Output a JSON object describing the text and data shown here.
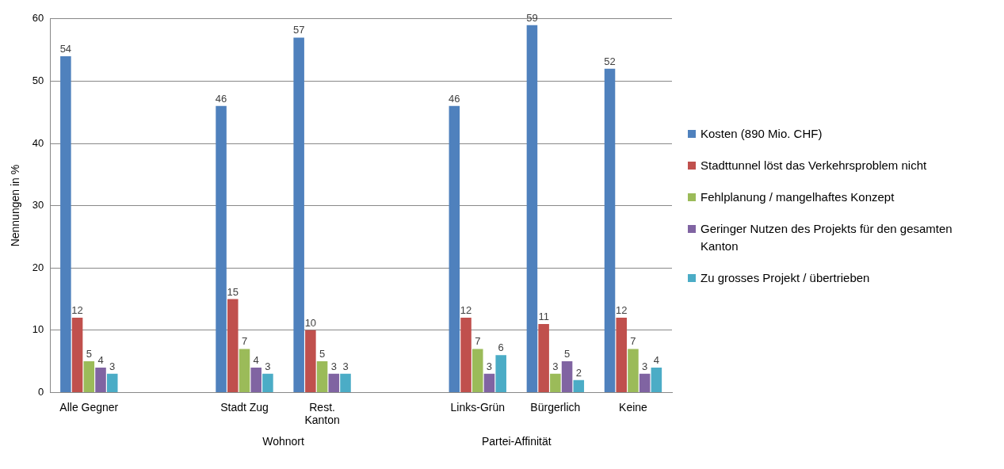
{
  "chart_data": {
    "type": "bar",
    "ylabel": "Nennungen in %",
    "categories": [
      "Alle Gegner",
      null,
      "Stadt Zug",
      "Rest. Kanton",
      null,
      "Links-Grün",
      "Bürgerlich",
      "Keine"
    ],
    "series": [
      {
        "name": "Kosten (890 Mio. CHF)",
        "color": "#4f81bd",
        "values": [
          54,
          null,
          46,
          57,
          null,
          46,
          59,
          52
        ]
      },
      {
        "name": "Stadttunnel löst das Verkehrsproblem nicht",
        "color": "#c0504d",
        "values": [
          12,
          null,
          15,
          10,
          null,
          12,
          11,
          12
        ]
      },
      {
        "name": "Fehlplanung / mangelhaftes Konzept",
        "color": "#9bbb59",
        "values": [
          5,
          null,
          7,
          5,
          null,
          7,
          3,
          7
        ]
      },
      {
        "name": "Geringer Nutzen des Projekts für den gesamten Kanton",
        "color": "#8064a2",
        "values": [
          4,
          null,
          4,
          3,
          null,
          3,
          5,
          3
        ]
      },
      {
        "name": "Zu grosses Projekt / übertrieben",
        "color": "#4bacc6",
        "values": [
          3,
          null,
          3,
          3,
          null,
          6,
          2,
          4
        ]
      }
    ],
    "ylim": [
      0,
      60
    ],
    "yticks": [
      0,
      10,
      20,
      30,
      40,
      50,
      60
    ],
    "grid": "y",
    "legend": "right",
    "data_labels": true,
    "annotations": [
      "Wohnort",
      "Partei-Affinität"
    ]
  }
}
